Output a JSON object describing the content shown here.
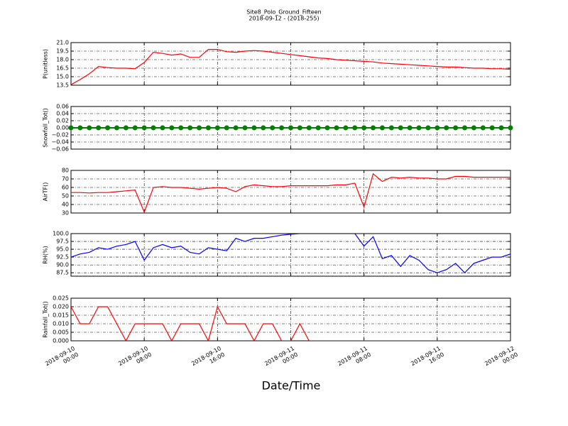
{
  "figure": {
    "title": "Site8_Polo_Ground_Fifteen",
    "subtitle": "2018-09-12 - (2018-255)",
    "xlabel": "Date/Time",
    "x": [
      "2018-09-10 00:00",
      "2018-09-10 01:00",
      "2018-09-10 02:00",
      "2018-09-10 03:00",
      "2018-09-10 04:00",
      "2018-09-10 05:00",
      "2018-09-10 06:00",
      "2018-09-10 07:00",
      "2018-09-10 08:00",
      "2018-09-10 09:00",
      "2018-09-10 10:00",
      "2018-09-10 11:00",
      "2018-09-10 12:00",
      "2018-09-10 13:00",
      "2018-09-10 14:00",
      "2018-09-10 15:00",
      "2018-09-10 16:00",
      "2018-09-10 17:00",
      "2018-09-10 18:00",
      "2018-09-10 19:00",
      "2018-09-10 20:00",
      "2018-09-10 21:00",
      "2018-09-10 22:00",
      "2018-09-10 23:00",
      "2018-09-11 00:00",
      "2018-09-11 01:00",
      "2018-09-11 02:00",
      "2018-09-11 03:00",
      "2018-09-11 04:00",
      "2018-09-11 05:00",
      "2018-09-11 06:00",
      "2018-09-11 07:00",
      "2018-09-11 08:00",
      "2018-09-11 09:00",
      "2018-09-11 10:00",
      "2018-09-11 11:00",
      "2018-09-11 12:00",
      "2018-09-11 13:00",
      "2018-09-11 14:00",
      "2018-09-11 15:00",
      "2018-09-11 16:00",
      "2018-09-11 17:00",
      "2018-09-11 18:00",
      "2018-09-11 19:00",
      "2018-09-11 20:00",
      "2018-09-11 21:00",
      "2018-09-11 22:00",
      "2018-09-11 23:00",
      "2018-09-12 00:00"
    ],
    "xlim": [
      "2018-09-10 00:00",
      "2018-09-12 00:00"
    ],
    "xticks": [
      {
        "value": "2018-09-10 00:00",
        "label": "2018-09-10\n00:00"
      },
      {
        "value": "2018-09-10 08:00",
        "label": "2018-09-10\n08:00"
      },
      {
        "value": "2018-09-10 16:00",
        "label": "2018-09-10\n16:00"
      },
      {
        "value": "2018-09-11 00:00",
        "label": "2018-09-11\n00:00"
      },
      {
        "value": "2018-09-11 08:00",
        "label": "2018-09-11\n08:00"
      },
      {
        "value": "2018-09-11 16:00",
        "label": "2018-09-11\n16:00"
      },
      {
        "value": "2018-09-12 00:00",
        "label": "2018-09-12\n00:00"
      }
    ],
    "grid": true
  },
  "chart_data": [
    {
      "type": "line",
      "ylabel": "P(unitless)",
      "ylim": [
        13.5,
        21.0
      ],
      "yticks": [
        13.5,
        {
          "value": 15,
          "label": "15.0"
        },
        16.5,
        {
          "value": 18,
          "label": "18.0"
        },
        19.5,
        {
          "value": 21,
          "label": "21.0"
        }
      ],
      "series": [
        {
          "color": "#ff0000",
          "values": [
            13.6,
            14.5,
            15.5,
            16.8,
            16.6,
            16.5,
            16.5,
            16.4,
            17.5,
            19.3,
            19.1,
            18.8,
            19.0,
            18.4,
            18.4,
            19.8,
            19.8,
            19.4,
            19.3,
            19.5,
            19.6,
            19.5,
            19.3,
            19.1,
            18.9,
            18.7,
            18.5,
            18.3,
            18.2,
            18.0,
            17.9,
            17.8,
            17.7,
            17.6,
            17.4,
            17.3,
            17.2,
            17.1,
            17.0,
            16.9,
            16.8,
            16.7,
            16.7,
            16.6,
            16.5,
            16.5,
            16.4,
            16.4,
            16.3
          ]
        }
      ]
    },
    {
      "type": "line",
      "ylabel": "Snowfall_Tot()",
      "ylim": [
        -0.06,
        0.06
      ],
      "marker": "o",
      "yticks": [
        {
          "value": -0.06,
          "label": "−0.06"
        },
        {
          "value": -0.04,
          "label": "−0.04"
        },
        {
          "value": -0.02,
          "label": "−0.02"
        },
        {
          "value": 0,
          "label": "0.00"
        },
        0.02,
        0.04,
        0.06
      ],
      "series": [
        {
          "color": "#008000",
          "values": [
            0,
            0,
            0,
            0,
            0,
            0,
            0,
            0,
            0,
            0,
            0,
            0,
            0,
            0,
            0,
            0,
            0,
            0,
            0,
            0,
            0,
            0,
            0,
            0,
            0,
            0,
            0,
            0,
            0,
            0,
            0,
            0,
            0,
            0,
            0,
            0,
            0,
            0,
            0,
            0,
            0,
            0,
            0,
            0,
            0,
            0,
            0,
            0,
            0
          ]
        }
      ]
    },
    {
      "type": "line",
      "ylabel": "AirTF()",
      "ylim": [
        30,
        80
      ],
      "yticks": [
        30,
        40,
        50,
        60,
        70,
        80
      ],
      "series": [
        {
          "color": "#ff0000",
          "values": [
            54,
            54,
            53.5,
            54,
            54,
            55,
            56,
            57,
            31,
            60,
            61,
            60,
            60,
            59,
            58,
            59,
            60,
            59,
            55,
            61,
            63,
            62,
            61,
            61,
            62,
            62,
            62,
            62,
            62,
            63,
            63,
            65,
            37,
            76,
            67,
            72,
            71,
            72,
            71,
            71,
            70,
            70,
            73,
            73,
            72,
            72,
            72,
            72,
            72
          ]
        }
      ]
    },
    {
      "type": "line",
      "ylabel": "RH(%)",
      "ylim": [
        86.4,
        100
      ],
      "yticks": [
        87.5,
        {
          "value": 90,
          "label": "90.0"
        },
        92.5,
        {
          "value": 95,
          "label": "95.0"
        },
        97.5,
        {
          "value": 100,
          "label": "100.0"
        }
      ],
      "series": [
        {
          "color": "#0000ff",
          "values": [
            92.5,
            93.5,
            94,
            95.5,
            95,
            96,
            96.5,
            97.5,
            91.5,
            95.5,
            96.5,
            95.5,
            96,
            94,
            93.5,
            95.5,
            95,
            94.5,
            98.5,
            97.5,
            98.5,
            98.5,
            99,
            99.5,
            99.8,
            100,
            100,
            100,
            100,
            100,
            100,
            100,
            96,
            99,
            92,
            93,
            89.5,
            93,
            91.5,
            88.5,
            87.5,
            88.5,
            90.5,
            87.5,
            90.5,
            91.5,
            92.5,
            92.5,
            93.5
          ]
        }
      ]
    },
    {
      "type": "line",
      "ylabel": "Rainfall_Tot()",
      "ylim": [
        0,
        0.025
      ],
      "yticks": [
        {
          "value": 0,
          "label": "0.000"
        },
        0.005,
        {
          "value": 0.01,
          "label": "0.010"
        },
        0.015,
        {
          "value": 0.02,
          "label": "0.020"
        },
        0.025
      ],
      "series": [
        {
          "color": "#ff0000",
          "values": [
            0.02,
            0.01,
            0.01,
            0.02,
            0.02,
            0.01,
            0,
            0.01,
            0.01,
            0.01,
            0.01,
            0,
            0.01,
            0.01,
            0.01,
            0,
            0.02,
            0.01,
            0.01,
            0.01,
            0,
            0.01,
            0.01,
            0,
            0,
            0.01,
            0,
            0,
            0,
            0,
            0,
            0,
            0,
            0,
            0,
            0,
            0,
            0,
            0,
            0,
            0,
            0,
            0,
            0,
            0,
            0,
            0,
            0,
            0
          ]
        }
      ]
    }
  ]
}
